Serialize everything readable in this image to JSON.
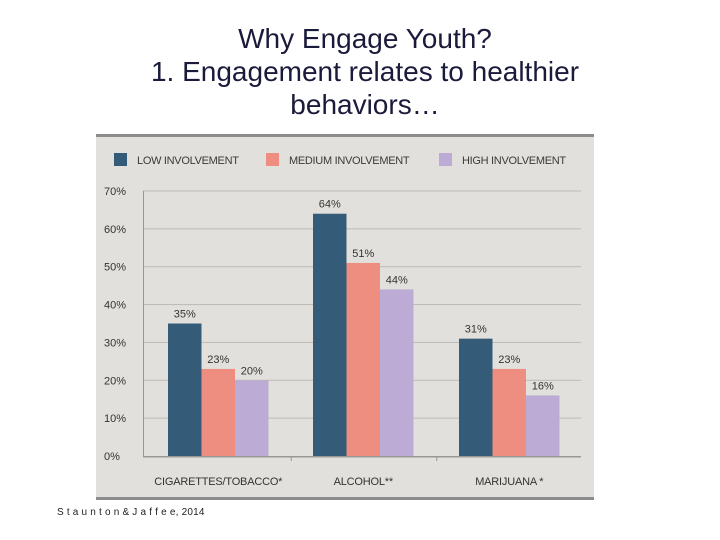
{
  "slide": {
    "title_line1": "Why Engage Youth?",
    "title_line2": "1. Engagement relates to healthier",
    "title_line3": "behaviors…",
    "citation": "S t a u n t o n & J a f f e e, 2014"
  },
  "chart_data": {
    "type": "bar",
    "categories": [
      "CIGARETTES/TOBACCO*",
      "ALCOHOL**",
      "MARIJUANA *"
    ],
    "series": [
      {
        "name": "LOW INVOLVEMENT",
        "color": "#345b78",
        "values": [
          35,
          64,
          31
        ],
        "labels": [
          "35%",
          "64%",
          "31%"
        ]
      },
      {
        "name": "MEDIUM INVOLVEMENT",
        "color": "#ee8e81",
        "values": [
          23,
          51,
          23
        ],
        "labels": [
          "23%",
          "51%",
          "23%"
        ]
      },
      {
        "name": "HIGH INVOLVEMENT",
        "color": "#bcabd5",
        "values": [
          20,
          44,
          16
        ],
        "labels": [
          "20%",
          "44%",
          "16%"
        ]
      }
    ],
    "yticks": [
      "0%",
      "10%",
      "20%",
      "30%",
      "40%",
      "50%",
      "60%",
      "70%"
    ],
    "ylim": [
      0,
      70
    ],
    "legend_position": "top",
    "grid": true,
    "background": "#e2e0dc"
  }
}
